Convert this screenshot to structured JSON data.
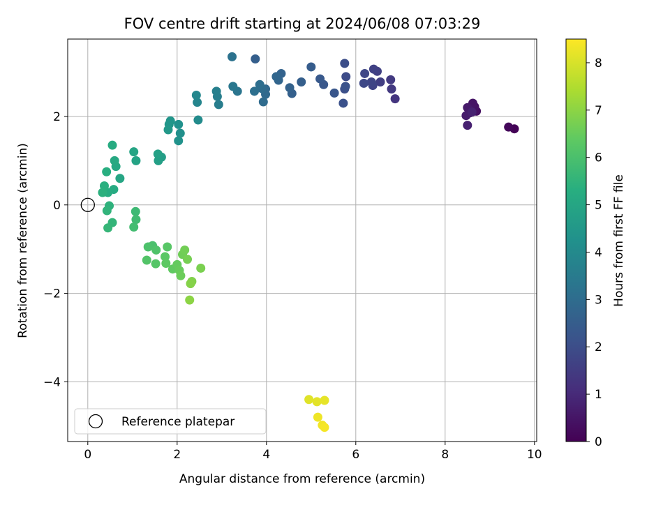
{
  "chart_data": {
    "type": "scatter",
    "title": "FOV centre drift starting at 2024/06/08 07:03:29",
    "xlabel": "Angular distance from reference (arcmin)",
    "ylabel": "Rotation from reference (arcmin)",
    "xlim": [
      -0.45,
      10.05
    ],
    "ylim": [
      -5.35,
      3.75
    ],
    "xticks": [
      0,
      2,
      4,
      6,
      8,
      10
    ],
    "xtick_labels": [
      "0",
      "2",
      "4",
      "6",
      "8",
      "10"
    ],
    "yticks": [
      -4,
      -2,
      0,
      2
    ],
    "ytick_labels": [
      "−4",
      "−2",
      "0",
      "2"
    ],
    "grid": true,
    "colormap": "viridis",
    "colorbar": {
      "label": "Hours from first FF file",
      "range": [
        0,
        8.5
      ],
      "ticks": [
        0,
        1,
        2,
        3,
        4,
        5,
        6,
        7,
        8
      ],
      "tick_labels": [
        "0",
        "1",
        "2",
        "3",
        "4",
        "5",
        "6",
        "7",
        "8"
      ]
    },
    "legend": {
      "placement": "lower-left",
      "entries": [
        "Reference platepar"
      ]
    },
    "reference_point": {
      "x": 0,
      "y": 0,
      "label": "Reference platepar",
      "marker": "open-circle"
    },
    "points": [
      {
        "x": 9.55,
        "y": 1.72,
        "c": 0.05
      },
      {
        "x": 9.42,
        "y": 1.76,
        "c": 0.15
      },
      {
        "x": 8.7,
        "y": 2.12,
        "c": 0.35
      },
      {
        "x": 8.66,
        "y": 2.22,
        "c": 0.4
      },
      {
        "x": 8.62,
        "y": 2.3,
        "c": 0.45
      },
      {
        "x": 8.58,
        "y": 2.16,
        "c": 0.5
      },
      {
        "x": 8.55,
        "y": 2.08,
        "c": 0.55
      },
      {
        "x": 8.5,
        "y": 2.2,
        "c": 0.6
      },
      {
        "x": 8.47,
        "y": 2.02,
        "c": 0.65
      },
      {
        "x": 8.5,
        "y": 1.8,
        "c": 0.75
      },
      {
        "x": 8.6,
        "y": 2.1,
        "c": 0.8
      },
      {
        "x": 6.88,
        "y": 2.4,
        "c": 1.3
      },
      {
        "x": 6.8,
        "y": 2.62,
        "c": 1.4
      },
      {
        "x": 6.78,
        "y": 2.83,
        "c": 1.45
      },
      {
        "x": 6.55,
        "y": 2.78,
        "c": 1.55
      },
      {
        "x": 6.48,
        "y": 3.02,
        "c": 1.6
      },
      {
        "x": 6.4,
        "y": 3.07,
        "c": 1.65
      },
      {
        "x": 6.38,
        "y": 2.7,
        "c": 1.7
      },
      {
        "x": 6.35,
        "y": 2.78,
        "c": 1.75
      },
      {
        "x": 6.2,
        "y": 2.97,
        "c": 1.8
      },
      {
        "x": 6.18,
        "y": 2.75,
        "c": 1.85
      },
      {
        "x": 5.78,
        "y": 2.9,
        "c": 1.95
      },
      {
        "x": 5.75,
        "y": 3.2,
        "c": 2.0
      },
      {
        "x": 5.75,
        "y": 2.62,
        "c": 2.05
      },
      {
        "x": 5.72,
        "y": 2.3,
        "c": 2.1
      },
      {
        "x": 5.77,
        "y": 2.68,
        "c": 2.15
      },
      {
        "x": 5.52,
        "y": 2.53,
        "c": 2.25
      },
      {
        "x": 5.28,
        "y": 2.72,
        "c": 2.3
      },
      {
        "x": 5.2,
        "y": 2.85,
        "c": 2.35
      },
      {
        "x": 5.0,
        "y": 3.12,
        "c": 2.45
      },
      {
        "x": 4.78,
        "y": 2.78,
        "c": 2.55
      },
      {
        "x": 4.57,
        "y": 2.52,
        "c": 2.6
      },
      {
        "x": 4.52,
        "y": 2.65,
        "c": 2.65
      },
      {
        "x": 4.33,
        "y": 2.97,
        "c": 2.7
      },
      {
        "x": 4.27,
        "y": 2.82,
        "c": 2.75
      },
      {
        "x": 4.22,
        "y": 2.9,
        "c": 2.8
      },
      {
        "x": 3.98,
        "y": 2.62,
        "c": 2.85
      },
      {
        "x": 3.98,
        "y": 2.5,
        "c": 2.9
      },
      {
        "x": 3.93,
        "y": 2.33,
        "c": 2.95
      },
      {
        "x": 3.9,
        "y": 2.63,
        "c": 3.0
      },
      {
        "x": 3.85,
        "y": 2.72,
        "c": 3.05
      },
      {
        "x": 3.73,
        "y": 2.57,
        "c": 3.1
      },
      {
        "x": 3.75,
        "y": 3.3,
        "c": 2.55
      },
      {
        "x": 3.23,
        "y": 3.35,
        "c": 3.2
      },
      {
        "x": 3.35,
        "y": 2.57,
        "c": 3.3
      },
      {
        "x": 3.25,
        "y": 2.68,
        "c": 3.35
      },
      {
        "x": 2.93,
        "y": 2.27,
        "c": 3.55
      },
      {
        "x": 2.9,
        "y": 2.45,
        "c": 3.6
      },
      {
        "x": 2.88,
        "y": 2.57,
        "c": 3.65
      },
      {
        "x": 2.45,
        "y": 2.32,
        "c": 3.85
      },
      {
        "x": 2.43,
        "y": 2.48,
        "c": 3.9
      },
      {
        "x": 2.47,
        "y": 1.92,
        "c": 4.05
      },
      {
        "x": 2.07,
        "y": 1.62,
        "c": 4.2
      },
      {
        "x": 2.03,
        "y": 1.82,
        "c": 4.25
      },
      {
        "x": 2.03,
        "y": 1.45,
        "c": 4.3
      },
      {
        "x": 1.85,
        "y": 1.9,
        "c": 4.4
      },
      {
        "x": 1.82,
        "y": 1.82,
        "c": 4.45
      },
      {
        "x": 1.8,
        "y": 1.7,
        "c": 4.5
      },
      {
        "x": 1.65,
        "y": 1.08,
        "c": 4.7
      },
      {
        "x": 1.58,
        "y": 1.0,
        "c": 4.75
      },
      {
        "x": 1.57,
        "y": 1.15,
        "c": 4.8
      },
      {
        "x": 1.08,
        "y": 1.0,
        "c": 4.9
      },
      {
        "x": 1.03,
        "y": 1.2,
        "c": 4.95
      },
      {
        "x": 0.72,
        "y": 0.6,
        "c": 5.0
      },
      {
        "x": 0.63,
        "y": 0.87,
        "c": 5.05
      },
      {
        "x": 0.6,
        "y": 1.0,
        "c": 5.1
      },
      {
        "x": 0.58,
        "y": 0.35,
        "c": 5.15
      },
      {
        "x": 0.55,
        "y": 1.35,
        "c": 5.2
      },
      {
        "x": 0.45,
        "y": 0.28,
        "c": 5.25
      },
      {
        "x": 0.42,
        "y": 0.75,
        "c": 5.3
      },
      {
        "x": 0.37,
        "y": 0.43,
        "c": 5.35
      },
      {
        "x": 0.33,
        "y": 0.28,
        "c": 5.4
      },
      {
        "x": 0.48,
        "y": -0.02,
        "c": 5.45
      },
      {
        "x": 0.43,
        "y": -0.13,
        "c": 5.5
      },
      {
        "x": 0.55,
        "y": -0.4,
        "c": 5.55
      },
      {
        "x": 0.45,
        "y": -0.52,
        "c": 5.6
      },
      {
        "x": 1.07,
        "y": -0.15,
        "c": 5.75
      },
      {
        "x": 1.08,
        "y": -0.33,
        "c": 5.8
      },
      {
        "x": 1.03,
        "y": -0.5,
        "c": 5.85
      },
      {
        "x": 1.45,
        "y": -0.92,
        "c": 6.0
      },
      {
        "x": 1.35,
        "y": -0.95,
        "c": 6.05
      },
      {
        "x": 1.53,
        "y": -1.02,
        "c": 6.1
      },
      {
        "x": 1.32,
        "y": -1.25,
        "c": 6.15
      },
      {
        "x": 1.52,
        "y": -1.33,
        "c": 6.2
      },
      {
        "x": 1.78,
        "y": -0.95,
        "c": 6.25
      },
      {
        "x": 1.73,
        "y": -1.17,
        "c": 6.3
      },
      {
        "x": 1.75,
        "y": -1.32,
        "c": 6.35
      },
      {
        "x": 1.9,
        "y": -1.45,
        "c": 6.4
      },
      {
        "x": 2.0,
        "y": -1.35,
        "c": 6.45
      },
      {
        "x": 2.05,
        "y": -1.48,
        "c": 6.5
      },
      {
        "x": 2.08,
        "y": -1.6,
        "c": 6.55
      },
      {
        "x": 2.12,
        "y": -1.12,
        "c": 6.6
      },
      {
        "x": 2.17,
        "y": -1.02,
        "c": 6.65
      },
      {
        "x": 2.23,
        "y": -1.23,
        "c": 6.7
      },
      {
        "x": 2.53,
        "y": -1.43,
        "c": 6.75
      },
      {
        "x": 2.33,
        "y": -1.73,
        "c": 6.85
      },
      {
        "x": 2.3,
        "y": -1.78,
        "c": 6.9
      },
      {
        "x": 2.28,
        "y": -2.15,
        "c": 7.0
      },
      {
        "x": 4.95,
        "y": -4.4,
        "c": 8.1
      },
      {
        "x": 5.13,
        "y": -4.45,
        "c": 8.15
      },
      {
        "x": 5.3,
        "y": -4.42,
        "c": 8.2
      },
      {
        "x": 5.15,
        "y": -4.8,
        "c": 8.3
      },
      {
        "x": 5.25,
        "y": -4.98,
        "c": 8.35
      },
      {
        "x": 5.3,
        "y": -5.03,
        "c": 8.4
      }
    ]
  }
}
